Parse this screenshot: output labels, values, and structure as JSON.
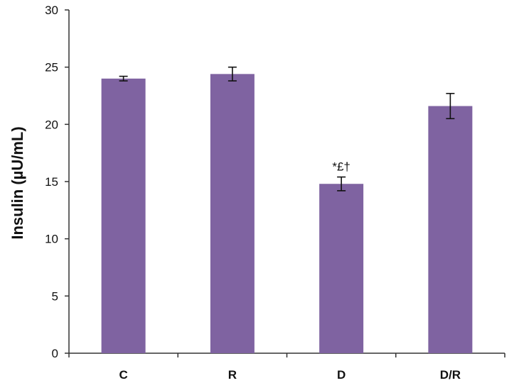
{
  "chart_data": {
    "type": "bar",
    "categories": [
      "C",
      "R",
      "D",
      "D/R"
    ],
    "values": [
      24.0,
      24.4,
      14.8,
      21.6
    ],
    "errors": [
      0.2,
      0.6,
      0.6,
      1.1
    ],
    "ylabel": "Insulin (µU/mL)",
    "xlabel": "",
    "ylim": [
      0,
      30
    ],
    "yticks": [
      0,
      5,
      10,
      15,
      20,
      25,
      30
    ],
    "annotations": [
      {
        "category": "D",
        "text": "*£†"
      }
    ],
    "grid": false,
    "bar_color": "#7f63a1"
  }
}
